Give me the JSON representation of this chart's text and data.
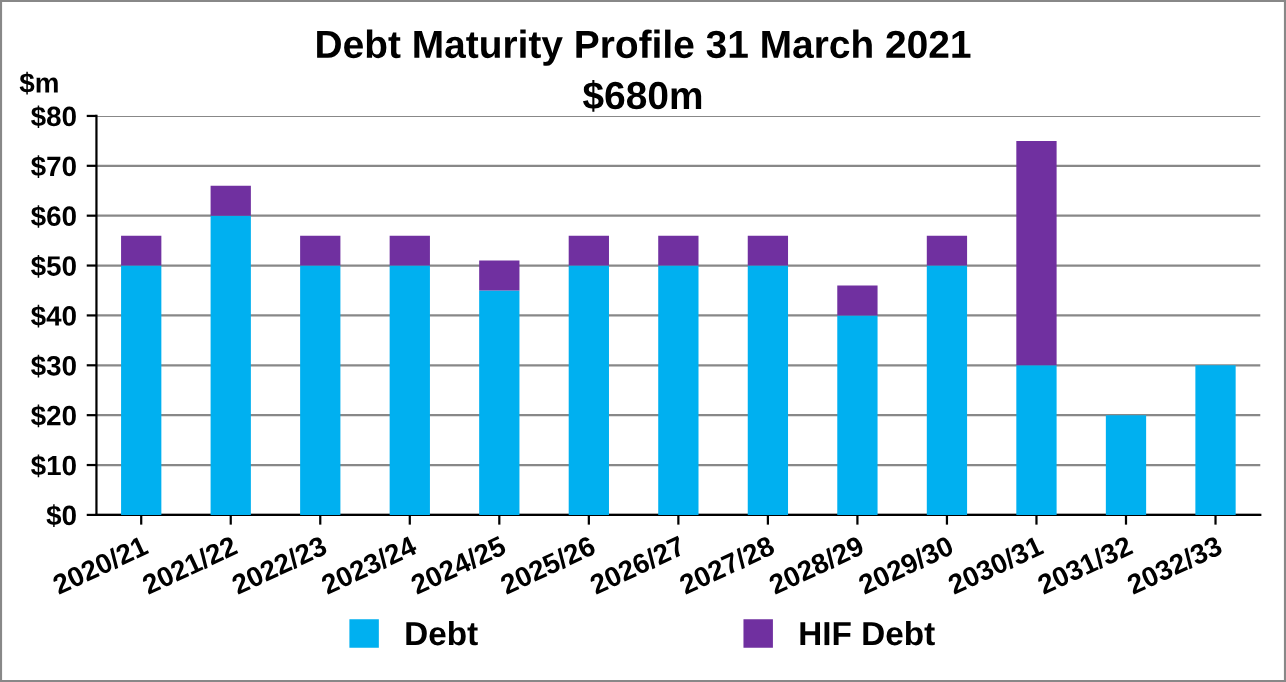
{
  "chart_data": {
    "type": "bar",
    "title": "Debt Maturity Profile 31 March 2021",
    "subtitle": "$680m",
    "ylabel": "$m",
    "categories": [
      "2020/21",
      "2021/22",
      "2022/23",
      "2023/24",
      "2024/25",
      "2025/26",
      "2026/27",
      "2027/28",
      "2028/29",
      "2029/30",
      "2030/31",
      "2031/32",
      "2032/33"
    ],
    "series": [
      {
        "name": "Debt",
        "color": "#00b0f0",
        "values": [
          50,
          60,
          50,
          50,
          45,
          50,
          50,
          50,
          40,
          50,
          30,
          20,
          30
        ]
      },
      {
        "name": "HIF Debt",
        "color": "#7030a0",
        "values": [
          6,
          6,
          6,
          6,
          6,
          6,
          6,
          6,
          6,
          6,
          45,
          0,
          0
        ]
      }
    ],
    "stacked": true,
    "ylim": [
      0,
      80
    ],
    "yticks": [
      {
        "value": 0,
        "label": "$0"
      },
      {
        "value": 10,
        "label": "$10"
      },
      {
        "value": 20,
        "label": "$20"
      },
      {
        "value": 30,
        "label": "$30"
      },
      {
        "value": 40,
        "label": "$40"
      },
      {
        "value": 50,
        "label": "$50"
      },
      {
        "value": 60,
        "label": "$60"
      },
      {
        "value": 70,
        "label": "$70"
      },
      {
        "value": 80,
        "label": "$80"
      }
    ],
    "grid": "y",
    "legend": "bottom"
  }
}
